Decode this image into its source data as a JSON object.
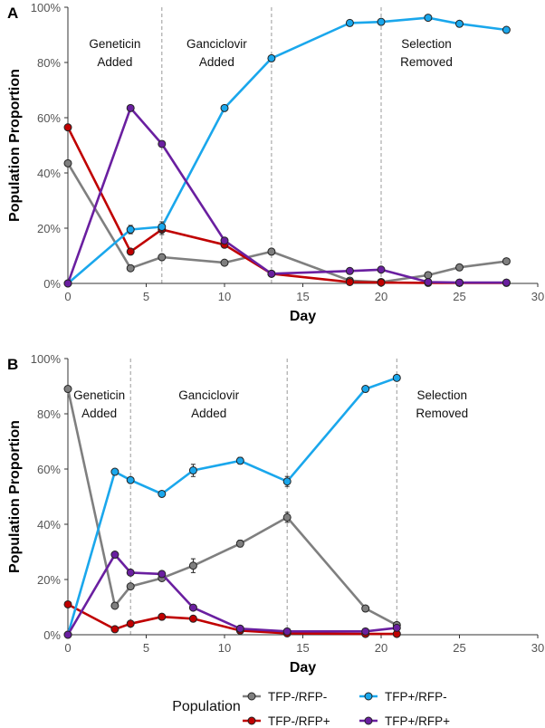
{
  "chart_data": [
    {
      "panel": "A",
      "type": "line",
      "xlabel": "Day",
      "ylabel": "Population Proportion",
      "xlim": [
        0,
        30
      ],
      "ylim": [
        0,
        100
      ],
      "xticks": [
        "0",
        "5",
        "10",
        "15",
        "20",
        "25",
        "30"
      ],
      "yticks": [
        "0%",
        "20%",
        "40%",
        "60%",
        "80%",
        "100%"
      ],
      "events": [
        {
          "x": 6,
          "label": [
            "Geneticin",
            "Added"
          ]
        },
        {
          "x": 13,
          "label": [
            "Ganciclovir",
            "Added"
          ]
        },
        {
          "x": 20,
          "label": [
            "Selection",
            "Removed"
          ]
        }
      ],
      "series": [
        {
          "name": "TFP-/RFP-",
          "x": [
            0,
            4,
            6,
            10,
            13,
            18,
            20,
            23,
            25,
            28
          ],
          "values": [
            43.5,
            5.5,
            9.5,
            7.5,
            11.5,
            1.0,
            0.5,
            3.0,
            5.8,
            8.0
          ],
          "err": [
            0.5,
            0.5,
            0.8,
            0.5,
            0.6,
            0.2,
            0.2,
            0.3,
            0.5,
            0.5
          ]
        },
        {
          "name": "TFP-/RFP+",
          "x": [
            0,
            4,
            6,
            10,
            13,
            18,
            20,
            23,
            25,
            28
          ],
          "values": [
            56.5,
            11.5,
            19.5,
            14.0,
            3.5,
            0.5,
            0.3,
            0.2,
            0.2,
            0.2
          ],
          "err": [
            0.5,
            0.8,
            1.8,
            0.8,
            0.3,
            0.1,
            0.1,
            0.1,
            0.1,
            0.1
          ]
        },
        {
          "name": "TFP+/RFP-",
          "x": [
            0,
            4,
            6,
            10,
            13,
            18,
            20,
            23,
            25,
            28
          ],
          "values": [
            0,
            19.5,
            20.5,
            63.5,
            81.5,
            94.3,
            94.7,
            96.2,
            94.0,
            91.8
          ],
          "err": [
            0.1,
            1.5,
            1.8,
            0.8,
            0.8,
            0.5,
            0.5,
            0.5,
            0.5,
            0.5
          ]
        },
        {
          "name": "TFP+/RFP+",
          "x": [
            0,
            4,
            6,
            10,
            13,
            18,
            20,
            23,
            25,
            28
          ],
          "values": [
            0,
            63.5,
            50.5,
            15.5,
            3.5,
            4.5,
            5.0,
            0.5,
            0.3,
            0.3
          ],
          "err": [
            0.1,
            0.6,
            0.6,
            0.6,
            0.3,
            0.3,
            0.3,
            0.1,
            0.1,
            0.1
          ]
        }
      ]
    },
    {
      "panel": "B",
      "type": "line",
      "xlabel": "Day",
      "ylabel": "Population Proportion",
      "xlim": [
        0,
        30
      ],
      "ylim": [
        0,
        100
      ],
      "xticks": [
        "0",
        "5",
        "10",
        "15",
        "20",
        "25",
        "30"
      ],
      "yticks": [
        "0%",
        "20%",
        "40%",
        "60%",
        "80%",
        "100%"
      ],
      "events": [
        {
          "x": 4,
          "label": [
            "Geneticin",
            "Added"
          ]
        },
        {
          "x": 14,
          "label": [
            "Ganciclovir",
            "Added"
          ]
        },
        {
          "x": 21,
          "label": [
            "Selection",
            "Removed"
          ]
        }
      ],
      "series": [
        {
          "name": "TFP-/RFP-",
          "x": [
            0,
            3,
            4,
            6,
            8,
            11,
            14,
            19,
            21
          ],
          "values": [
            89.0,
            10.5,
            17.5,
            20.5,
            25.0,
            33.0,
            42.5,
            9.5,
            3.5
          ],
          "err": [
            0.5,
            0.5,
            0.8,
            1.0,
            2.5,
            1.2,
            1.8,
            0.5,
            0.3
          ]
        },
        {
          "name": "TFP-/RFP+",
          "x": [
            0,
            3,
            4,
            6,
            8,
            11,
            14,
            19,
            21
          ],
          "values": [
            11.0,
            2.0,
            4.0,
            6.5,
            5.8,
            1.5,
            0.5,
            0.3,
            0.3
          ],
          "err": [
            0.5,
            0.3,
            0.3,
            0.3,
            0.3,
            0.2,
            0.1,
            0.1,
            0.1
          ]
        },
        {
          "name": "TFP+/RFP-",
          "x": [
            0,
            3,
            4,
            6,
            8,
            11,
            14,
            19,
            21
          ],
          "values": [
            0,
            59.0,
            56.0,
            51.0,
            59.5,
            63.0,
            55.5,
            89.0,
            93.0
          ],
          "err": [
            0.1,
            0.6,
            0.8,
            0.8,
            2.2,
            1.2,
            1.8,
            0.6,
            0.6
          ]
        },
        {
          "name": "TFP+/RFP+",
          "x": [
            0,
            3,
            4,
            6,
            8,
            11,
            14,
            19,
            21
          ],
          "values": [
            0,
            29.0,
            22.5,
            22.0,
            9.8,
            2.2,
            1.2,
            1.2,
            2.5
          ],
          "err": [
            0.1,
            0.6,
            0.5,
            0.8,
            0.5,
            0.3,
            0.2,
            0.2,
            0.3
          ]
        }
      ]
    }
  ],
  "series_colors": {
    "TFP-/RFP-": "#7f7f7f",
    "TFP-/RFP+": "#c00000",
    "TFP+/RFP-": "#1aa7ec",
    "TFP+/RFP+": "#6a1fa0"
  },
  "legend": {
    "title": "Population",
    "entries": [
      "TFP-/RFP-",
      "TFP-/RFP+",
      "TFP+/RFP-",
      "TFP+/RFP+"
    ]
  }
}
